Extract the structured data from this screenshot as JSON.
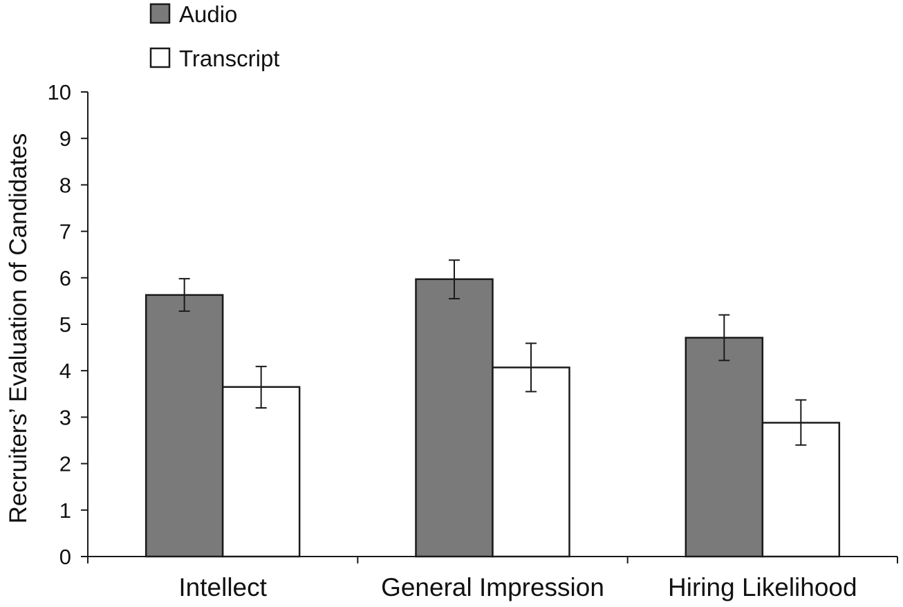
{
  "chart_data": {
    "type": "bar",
    "title": "",
    "xlabel": "",
    "ylabel": "Recruiters’ Evaluation of Candidates",
    "ylim": [
      0,
      10
    ],
    "yticks": [
      0,
      1,
      2,
      3,
      4,
      5,
      6,
      7,
      8,
      9,
      10
    ],
    "categories": [
      "Intellect",
      "General Impression",
      "Hiring Likelihood"
    ],
    "series": [
      {
        "name": "Audio",
        "color": "#7a7a7a",
        "values": [
          5.63,
          5.97,
          4.71
        ],
        "error_low": [
          5.28,
          5.55,
          4.22
        ],
        "error_high": [
          5.98,
          6.38,
          5.2
        ]
      },
      {
        "name": "Transcript",
        "color": "#ffffff",
        "values": [
          3.65,
          4.07,
          2.88
        ],
        "error_low": [
          3.2,
          3.55,
          2.4
        ],
        "error_high": [
          4.09,
          4.59,
          3.37
        ]
      }
    ],
    "legend_position": "top-left",
    "grid": false
  }
}
